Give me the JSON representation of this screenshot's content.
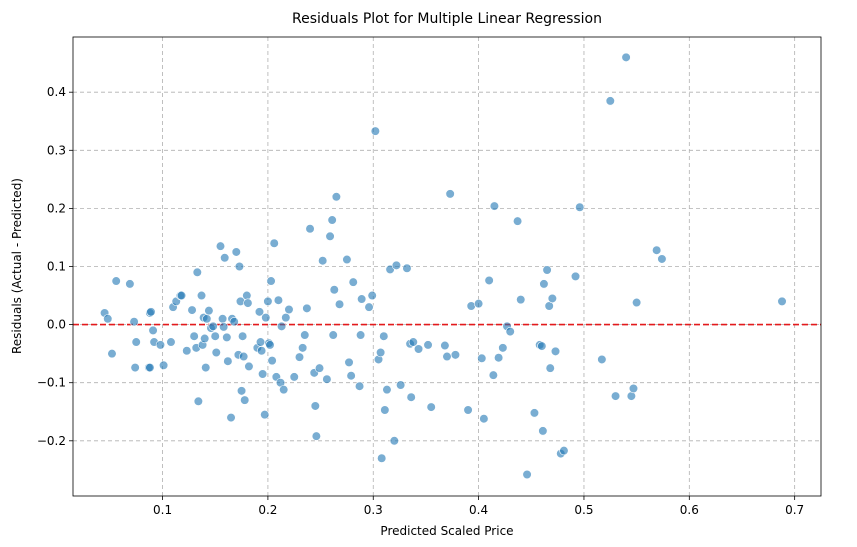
{
  "chart_data": {
    "type": "scatter",
    "title": "Residuals Plot for Multiple Linear Regression",
    "xlabel": "Predicted Scaled Price",
    "ylabel": "Residuals (Actual - Predicted)",
    "xlim": [
      0.015,
      0.725
    ],
    "ylim": [
      -0.295,
      0.495
    ],
    "x_ticks": [
      0.1,
      0.2,
      0.3,
      0.4,
      0.5,
      0.6,
      0.7
    ],
    "x_tick_labels": [
      "0.1",
      "0.2",
      "0.3",
      "0.4",
      "0.5",
      "0.6",
      "0.7"
    ],
    "y_ticks": [
      -0.2,
      -0.1,
      0.0,
      0.1,
      0.2,
      0.3,
      0.4
    ],
    "y_tick_labels": [
      "−0.2",
      "−0.1",
      "0.0",
      "0.1",
      "0.2",
      "0.3",
      "0.4"
    ],
    "grid": true,
    "reference_line": {
      "y": 0.0,
      "style": "dashed",
      "color": "#e31a1c"
    },
    "point_color": "#1f77b4",
    "points": [
      [
        0.045,
        0.02
      ],
      [
        0.048,
        0.01
      ],
      [
        0.052,
        -0.05
      ],
      [
        0.056,
        0.075
      ],
      [
        0.069,
        0.07
      ],
      [
        0.073,
        0.005
      ],
      [
        0.074,
        -0.074
      ],
      [
        0.075,
        -0.03
      ],
      [
        0.087,
        -0.074
      ],
      [
        0.088,
        -0.074
      ],
      [
        0.088,
        0.02
      ],
      [
        0.089,
        0.022
      ],
      [
        0.091,
        -0.01
      ],
      [
        0.092,
        -0.03
      ],
      [
        0.098,
        -0.035
      ],
      [
        0.101,
        -0.07
      ],
      [
        0.108,
        -0.03
      ],
      [
        0.11,
        0.03
      ],
      [
        0.113,
        0.04
      ],
      [
        0.117,
        0.05
      ],
      [
        0.118,
        0.05
      ],
      [
        0.123,
        -0.045
      ],
      [
        0.128,
        0.025
      ],
      [
        0.13,
        -0.02
      ],
      [
        0.132,
        -0.04
      ],
      [
        0.133,
        0.09
      ],
      [
        0.134,
        -0.132
      ],
      [
        0.137,
        0.05
      ],
      [
        0.138,
        -0.035
      ],
      [
        0.139,
        0.012
      ],
      [
        0.14,
        -0.024
      ],
      [
        0.141,
        -0.074
      ],
      [
        0.142,
        0.01
      ],
      [
        0.144,
        0.024
      ],
      [
        0.146,
        -0.006
      ],
      [
        0.148,
        -0.003
      ],
      [
        0.15,
        -0.02
      ],
      [
        0.151,
        -0.048
      ],
      [
        0.155,
        0.135
      ],
      [
        0.157,
        0.01
      ],
      [
        0.158,
        -0.004
      ],
      [
        0.159,
        0.115
      ],
      [
        0.161,
        -0.022
      ],
      [
        0.162,
        -0.063
      ],
      [
        0.165,
        -0.16
      ],
      [
        0.166,
        0.01
      ],
      [
        0.168,
        0.005
      ],
      [
        0.17,
        0.125
      ],
      [
        0.172,
        -0.052
      ],
      [
        0.173,
        0.1
      ],
      [
        0.174,
        0.04
      ],
      [
        0.175,
        -0.114
      ],
      [
        0.176,
        -0.02
      ],
      [
        0.177,
        -0.055
      ],
      [
        0.178,
        -0.13
      ],
      [
        0.18,
        0.05
      ],
      [
        0.181,
        0.037
      ],
      [
        0.182,
        -0.072
      ],
      [
        0.19,
        -0.04
      ],
      [
        0.192,
        0.022
      ],
      [
        0.193,
        -0.03
      ],
      [
        0.194,
        -0.045
      ],
      [
        0.195,
        -0.085
      ],
      [
        0.197,
        -0.155
      ],
      [
        0.198,
        0.012
      ],
      [
        0.2,
        0.04
      ],
      [
        0.201,
        -0.032
      ],
      [
        0.202,
        -0.035
      ],
      [
        0.203,
        0.075
      ],
      [
        0.204,
        -0.062
      ],
      [
        0.206,
        0.14
      ],
      [
        0.208,
        -0.09
      ],
      [
        0.21,
        0.042
      ],
      [
        0.212,
        -0.1
      ],
      [
        0.213,
        -0.003
      ],
      [
        0.215,
        -0.112
      ],
      [
        0.217,
        0.012
      ],
      [
        0.22,
        0.026
      ],
      [
        0.225,
        -0.09
      ],
      [
        0.23,
        -0.056
      ],
      [
        0.233,
        -0.04
      ],
      [
        0.235,
        -0.018
      ],
      [
        0.237,
        0.028
      ],
      [
        0.24,
        0.165
      ],
      [
        0.244,
        -0.083
      ],
      [
        0.245,
        -0.14
      ],
      [
        0.246,
        -0.192
      ],
      [
        0.249,
        -0.075
      ],
      [
        0.252,
        0.11
      ],
      [
        0.256,
        -0.094
      ],
      [
        0.259,
        0.152
      ],
      [
        0.261,
        0.18
      ],
      [
        0.262,
        -0.018
      ],
      [
        0.263,
        0.06
      ],
      [
        0.265,
        0.22
      ],
      [
        0.268,
        0.035
      ],
      [
        0.275,
        0.112
      ],
      [
        0.277,
        -0.065
      ],
      [
        0.279,
        -0.088
      ],
      [
        0.281,
        0.073
      ],
      [
        0.287,
        -0.106
      ],
      [
        0.288,
        -0.018
      ],
      [
        0.289,
        0.044
      ],
      [
        0.296,
        0.03
      ],
      [
        0.299,
        0.05
      ],
      [
        0.302,
        0.333
      ],
      [
        0.305,
        -0.06
      ],
      [
        0.307,
        -0.048
      ],
      [
        0.308,
        -0.23
      ],
      [
        0.31,
        -0.02
      ],
      [
        0.311,
        -0.147
      ],
      [
        0.313,
        -0.112
      ],
      [
        0.316,
        0.095
      ],
      [
        0.32,
        -0.2
      ],
      [
        0.322,
        0.102
      ],
      [
        0.326,
        -0.104
      ],
      [
        0.332,
        0.097
      ],
      [
        0.335,
        -0.033
      ],
      [
        0.336,
        -0.125
      ],
      [
        0.338,
        -0.03
      ],
      [
        0.343,
        -0.042
      ],
      [
        0.352,
        -0.035
      ],
      [
        0.355,
        -0.142
      ],
      [
        0.368,
        -0.036
      ],
      [
        0.37,
        -0.055
      ],
      [
        0.373,
        0.225
      ],
      [
        0.378,
        -0.052
      ],
      [
        0.39,
        -0.147
      ],
      [
        0.393,
        0.032
      ],
      [
        0.4,
        0.036
      ],
      [
        0.403,
        -0.058
      ],
      [
        0.405,
        -0.162
      ],
      [
        0.41,
        0.076
      ],
      [
        0.414,
        -0.087
      ],
      [
        0.415,
        0.204
      ],
      [
        0.419,
        -0.057
      ],
      [
        0.423,
        -0.04
      ],
      [
        0.427,
        -0.003
      ],
      [
        0.43,
        -0.012
      ],
      [
        0.437,
        0.178
      ],
      [
        0.44,
        0.043
      ],
      [
        0.446,
        -0.258
      ],
      [
        0.453,
        -0.152
      ],
      [
        0.458,
        -0.035
      ],
      [
        0.46,
        -0.037
      ],
      [
        0.461,
        -0.183
      ],
      [
        0.462,
        0.07
      ],
      [
        0.465,
        0.094
      ],
      [
        0.467,
        0.032
      ],
      [
        0.468,
        -0.075
      ],
      [
        0.47,
        0.045
      ],
      [
        0.473,
        -0.046
      ],
      [
        0.478,
        -0.222
      ],
      [
        0.481,
        -0.217
      ],
      [
        0.492,
        0.083
      ],
      [
        0.496,
        0.202
      ],
      [
        0.517,
        -0.06
      ],
      [
        0.525,
        0.385
      ],
      [
        0.53,
        -0.123
      ],
      [
        0.54,
        0.46
      ],
      [
        0.545,
        -0.123
      ],
      [
        0.547,
        -0.11
      ],
      [
        0.55,
        0.038
      ],
      [
        0.569,
        0.128
      ],
      [
        0.574,
        0.113
      ],
      [
        0.688,
        0.04
      ]
    ]
  }
}
